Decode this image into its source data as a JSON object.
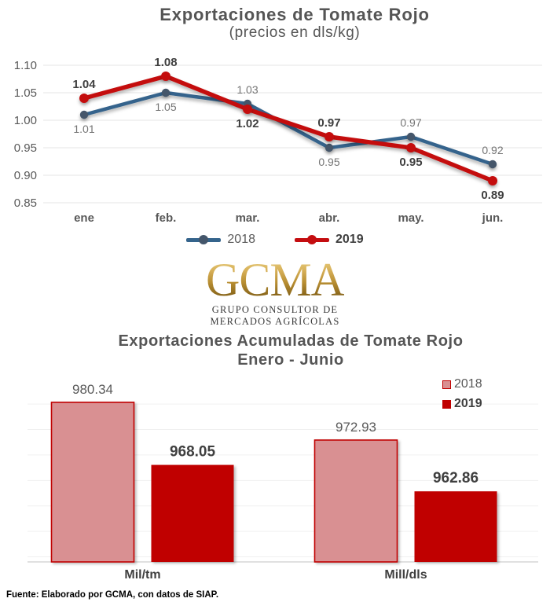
{
  "logo": {
    "text": "GCMA",
    "line1": "GRUPO CONSULTOR DE",
    "line2": "MERCADOS AGRÍCOLAS",
    "gold_top": "#EBD489",
    "gold_bottom": "#8A671C"
  },
  "footer": {
    "text": "Fuente: Elaborado por GCMA, con datos de SIAP."
  },
  "chart_data": [
    {
      "type": "line",
      "title": "Exportaciones de Tomate Rojo",
      "subtitle": "(precios en dls/kg)",
      "categories": [
        "ene",
        "feb.",
        "mar.",
        "abr.",
        "may.",
        "jun."
      ],
      "series": [
        {
          "name": "2018",
          "color": "#35648C",
          "marker_color": "#44566B",
          "values": [
            1.01,
            1.05,
            1.03,
            0.95,
            0.97,
            0.92
          ],
          "label_style": "regular-gray"
        },
        {
          "name": "2019",
          "color": "#C40D10",
          "marker_color": "#C40D10",
          "values": [
            1.04,
            1.08,
            1.02,
            0.97,
            0.95,
            0.89
          ],
          "label_style": "bold-dark"
        }
      ],
      "ylim": [
        0.85,
        1.1
      ],
      "yticks": [
        1.1,
        1.05,
        1.0,
        0.95,
        0.9,
        0.85
      ],
      "grid": true,
      "legend_position": "bottom"
    },
    {
      "type": "bar",
      "title": "Exportaciones Acumuladas de Tomate Rojo",
      "subtitle": "Enero - Junio",
      "categories": [
        "Mil/tm",
        "Mill/dls"
      ],
      "series": [
        {
          "name": "2018",
          "fill": "#D99092",
          "border": "#C00000",
          "values": [
            980.34,
            972.93
          ],
          "label_style": "regular-gray"
        },
        {
          "name": "2019",
          "fill": "#C00000",
          "border": "#C00000",
          "values": [
            968.05,
            962.86
          ],
          "label_style": "bold-dark"
        }
      ],
      "ylim": [
        949,
        984
      ],
      "grid": true,
      "legend_position": "top-right"
    }
  ]
}
